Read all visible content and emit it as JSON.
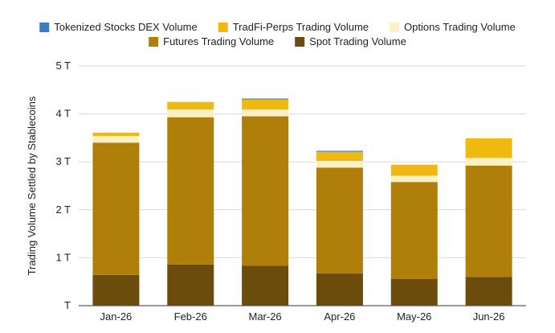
{
  "chart_data": {
    "type": "bar",
    "stacked": true,
    "title": "",
    "xlabel": "",
    "ylabel": "Trading Volume Settled by Stablecoins",
    "ylim": [
      0,
      5
    ],
    "unit_suffix": "T",
    "yticks": [
      {
        "value": 0,
        "label": "T"
      },
      {
        "value": 1,
        "label": "1 T"
      },
      {
        "value": 2,
        "label": "2 T"
      },
      {
        "value": 3,
        "label": "3 T"
      },
      {
        "value": 4,
        "label": "4 T"
      },
      {
        "value": 5,
        "label": "5 T"
      }
    ],
    "grid": true,
    "legend_position": "top",
    "categories": [
      "Jan-26",
      "Feb-26",
      "Mar-26",
      "Apr-26",
      "May-26",
      "Jun-26"
    ],
    "series": [
      {
        "name": "Spot Trading Volume",
        "color": "#6b4c0c",
        "values": [
          0.64,
          0.86,
          0.83,
          0.67,
          0.56,
          0.6
        ]
      },
      {
        "name": "Futures Trading Volume",
        "color": "#b07f0a",
        "values": [
          2.76,
          3.07,
          3.12,
          2.21,
          2.02,
          2.32
        ]
      },
      {
        "name": "Options Trading Volume",
        "color": "#fbefc4",
        "values": [
          0.14,
          0.16,
          0.14,
          0.14,
          0.13,
          0.16
        ]
      },
      {
        "name": "TradFi-Perps Trading Volume",
        "color": "#efb90f",
        "values": [
          0.07,
          0.16,
          0.21,
          0.19,
          0.23,
          0.41
        ]
      },
      {
        "name": "Tokenized Stocks DEX Volume",
        "color": "#3b7dc4",
        "values": [
          0.0,
          0.0,
          0.02,
          0.02,
          0.0,
          0.0
        ]
      }
    ],
    "legend_order": [
      "Tokenized Stocks DEX Volume",
      "TradFi-Perps Trading Volume",
      "Options Trading Volume",
      "Futures Trading Volume",
      "Spot Trading Volume"
    ]
  }
}
